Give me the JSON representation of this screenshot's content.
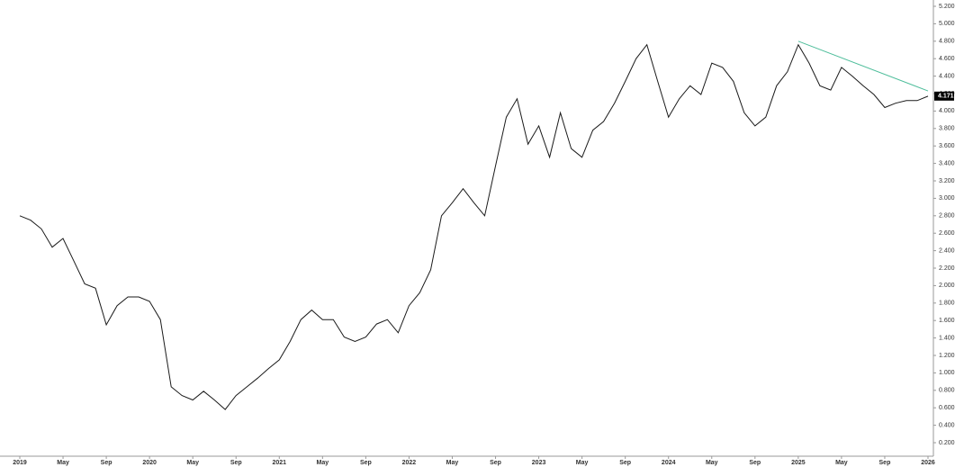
{
  "chart_data": {
    "type": "line",
    "color": "#1a1a1a",
    "x": [
      "2019-01",
      "2019-02",
      "2019-03",
      "2019-04",
      "2019-05",
      "2019-06",
      "2019-07",
      "2019-08",
      "2019-09",
      "2019-10",
      "2019-11",
      "2019-12",
      "2020-01",
      "2020-02",
      "2020-03",
      "2020-04",
      "2020-05",
      "2020-06",
      "2020-07",
      "2020-08",
      "2020-09",
      "2020-10",
      "2020-11",
      "2020-12",
      "2021-01",
      "2021-02",
      "2021-03",
      "2021-04",
      "2021-05",
      "2021-06",
      "2021-07",
      "2021-08",
      "2021-09",
      "2021-10",
      "2021-11",
      "2021-12",
      "2022-01",
      "2022-02",
      "2022-03",
      "2022-04",
      "2022-05",
      "2022-06",
      "2022-07",
      "2022-08",
      "2022-09",
      "2022-10",
      "2022-11",
      "2022-12",
      "2023-01",
      "2023-02",
      "2023-03",
      "2023-04",
      "2023-05",
      "2023-06",
      "2023-07",
      "2023-08",
      "2023-09",
      "2023-10",
      "2023-11",
      "2023-12",
      "2024-01",
      "2024-02",
      "2024-03",
      "2024-04",
      "2024-05",
      "2024-06",
      "2024-07",
      "2024-08",
      "2024-09",
      "2024-10",
      "2024-11",
      "2024-12",
      "2025-01",
      "2025-02",
      "2025-03",
      "2025-04",
      "2025-05",
      "2025-06",
      "2025-07",
      "2025-08",
      "2025-09",
      "2025-10",
      "2025-11",
      "2025-12",
      "2026-01"
    ],
    "values": [
      2.8,
      2.75,
      2.65,
      2.44,
      2.54,
      2.28,
      2.02,
      1.97,
      1.55,
      1.77,
      1.87,
      1.87,
      1.82,
      1.61,
      0.84,
      0.74,
      0.69,
      0.79,
      0.69,
      0.58,
      0.74,
      0.84,
      0.94,
      1.05,
      1.15,
      1.36,
      1.61,
      1.72,
      1.61,
      1.61,
      1.41,
      1.36,
      1.41,
      1.56,
      1.61,
      1.46,
      1.77,
      1.92,
      2.18,
      2.8,
      2.95,
      3.11,
      2.95,
      2.8,
      3.37,
      3.93,
      4.14,
      3.62,
      3.83,
      3.47,
      3.98,
      3.57,
      3.47,
      3.78,
      3.88,
      4.09,
      4.34,
      4.6,
      4.76,
      4.34,
      3.93,
      4.14,
      4.29,
      4.19,
      4.55,
      4.5,
      4.34,
      3.98,
      3.83,
      3.93,
      4.29,
      4.45,
      4.76,
      4.55,
      4.29,
      4.24,
      4.5,
      4.4,
      4.29,
      4.19,
      4.04,
      4.09,
      4.12,
      4.12,
      4.17
    ],
    "xlim": [
      "2019-01",
      "2026-01"
    ],
    "xticks": [
      {
        "value": "2019-01",
        "label": "2019"
      },
      {
        "value": "2019-05",
        "label": "May"
      },
      {
        "value": "2019-09",
        "label": "Sep"
      },
      {
        "value": "2020-01",
        "label": "2020"
      },
      {
        "value": "2020-05",
        "label": "May"
      },
      {
        "value": "2020-09",
        "label": "Sep"
      },
      {
        "value": "2021-01",
        "label": "2021"
      },
      {
        "value": "2021-05",
        "label": "May"
      },
      {
        "value": "2021-09",
        "label": "Sep"
      },
      {
        "value": "2022-01",
        "label": "2022"
      },
      {
        "value": "2022-05",
        "label": "May"
      },
      {
        "value": "2022-09",
        "label": "Sep"
      },
      {
        "value": "2023-01",
        "label": "2023"
      },
      {
        "value": "2023-05",
        "label": "May"
      },
      {
        "value": "2023-09",
        "label": "Sep"
      },
      {
        "value": "2024-01",
        "label": "2024"
      },
      {
        "value": "2024-05",
        "label": "May"
      },
      {
        "value": "2024-09",
        "label": "Sep"
      },
      {
        "value": "2025-01",
        "label": "2025"
      },
      {
        "value": "2025-05",
        "label": "May"
      },
      {
        "value": "2025-09",
        "label": "Sep"
      },
      {
        "value": "2026-01",
        "label": "2026"
      }
    ],
    "ylim": [
      0.2,
      5.2
    ],
    "yticks": [
      {
        "value": 0.2,
        "label": "0.200"
      },
      {
        "value": 0.4,
        "label": "0.400"
      },
      {
        "value": 0.6,
        "label": "0.600"
      },
      {
        "value": 0.8,
        "label": "0.800"
      },
      {
        "value": 1.0,
        "label": "1.000"
      },
      {
        "value": 1.2,
        "label": "1.200"
      },
      {
        "value": 1.4,
        "label": "1.400"
      },
      {
        "value": 1.6,
        "label": "1.600"
      },
      {
        "value": 1.8,
        "label": "1.800"
      },
      {
        "value": 2.0,
        "label": "2.000"
      },
      {
        "value": 2.2,
        "label": "2.200"
      },
      {
        "value": 2.4,
        "label": "2.400"
      },
      {
        "value": 2.6,
        "label": "2.600"
      },
      {
        "value": 2.8,
        "label": "2.800"
      },
      {
        "value": 3.0,
        "label": "3.000"
      },
      {
        "value": 3.2,
        "label": "3.200"
      },
      {
        "value": 3.4,
        "label": "3.400"
      },
      {
        "value": 3.6,
        "label": "3.600"
      },
      {
        "value": 3.8,
        "label": "3.800"
      },
      {
        "value": 4.0,
        "label": "4.000"
      },
      {
        "value": 4.2,
        "label": "4.200"
      },
      {
        "value": 4.4,
        "label": "4.400"
      },
      {
        "value": 4.6,
        "label": "4.600"
      },
      {
        "value": 4.8,
        "label": "4.800"
      },
      {
        "value": 5.0,
        "label": "5.000"
      },
      {
        "value": 5.2,
        "label": "5.200"
      }
    ],
    "trendline": {
      "x": [
        "2025-01",
        "2026-01"
      ],
      "values": [
        4.8,
        4.23
      ],
      "color": "#4dbd9a"
    },
    "last_value": {
      "value": 4.171,
      "label": "4.171"
    }
  }
}
